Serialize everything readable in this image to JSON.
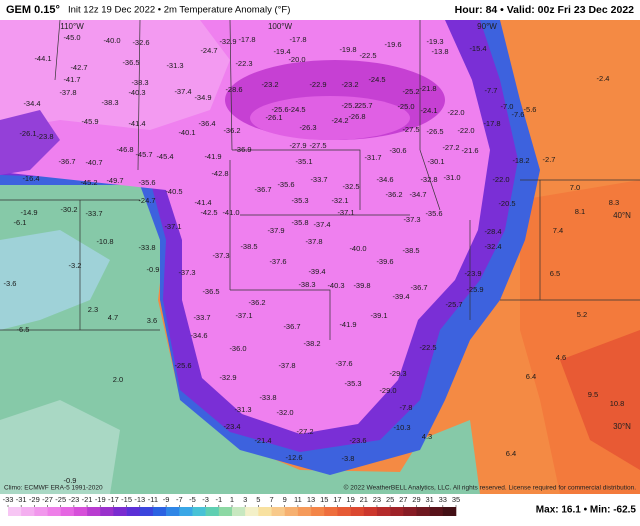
{
  "header": {
    "model": "GEM 0.15°",
    "subtitle": "Init 12z 19 Dec 2022 • 2m Temperature Anomaly (°F)",
    "valid": "Hour: 84 • Valid: 00z Fri 23 Dec 2022"
  },
  "grid_labels": [
    "110°W",
    "100°W",
    "90°W",
    "40°N",
    "30°N"
  ],
  "map_labels": [
    "-45.0",
    "-40.0",
    "-32.6",
    "-32.9",
    "-17.8",
    "-17.8",
    "-19.8",
    "-19.6",
    "-19.3",
    "-24.7",
    "-19.4",
    "-22.5",
    "-13.8",
    "-15.4",
    "-44.1",
    "-36.5",
    "-31.3",
    "-22.3",
    "-20.0",
    "-42.7",
    "-41.7",
    "-38.3",
    "-23.2",
    "-24.5",
    "-21.8",
    "-7.7",
    "-37.8",
    "-40.3",
    "-37.4",
    "-28.6",
    "-23.2",
    "-22.9",
    "-25.2",
    "-34.4",
    "-38.3",
    "-34.9",
    "-25.6",
    "-24.5",
    "-25.2",
    "-25.7",
    "-25.0",
    "-24.1",
    "-22.0",
    "-7.0",
    "-5.6",
    "-2.4",
    "-26.1",
    "-24.2",
    "-26.8",
    "-17.8",
    "-7.6",
    "-26.3",
    "-27.5",
    "-26.5",
    "-22.0",
    "-45.9",
    "-41.4",
    "-36.4",
    "-36.2",
    "-40.1",
    "-26.1",
    "-23.8",
    "-46.8",
    "-45.7",
    "-45.4",
    "-27.9",
    "-27.5",
    "-27.2",
    "-21.6",
    "-18.2",
    "-2.7",
    "-36.7",
    "-40.7",
    "-36.9",
    "-31.7",
    "-30.6",
    "-30.1",
    "-41.9",
    "-35.1",
    "-16.4",
    "-45.2",
    "-49.7",
    "-35.6",
    "-40.5",
    "-42.8",
    "-33.7",
    "-32.5",
    "-34.6",
    "-32.8",
    "-31.0",
    "-22.0",
    "7.0",
    "-36.7",
    "-35.6",
    "-36.2",
    "-34.7",
    "-14.9",
    "-30.2",
    "-33.7",
    "-24.7",
    "-41.4",
    "-35.3",
    "-32.1",
    "-20.5",
    "8.1",
    "8.3",
    "-42.5",
    "-41.0",
    "-37.1",
    "-37.1",
    "-37.3",
    "-35.6",
    "-6.1",
    "-35.8",
    "-37.4",
    "-37.9",
    "-28.4",
    "7.4",
    "-10.8",
    "-33.8",
    "-38.5",
    "-37.8",
    "-40.0",
    "-38.5",
    "-32.4",
    "-3.2",
    "-37.3",
    "-37.6",
    "-39.6",
    "-0.9",
    "-39.4",
    "-23.9",
    "6.5",
    "-37.3",
    "-38.3",
    "-40.3",
    "-39.8",
    "-36.7",
    "-25.9",
    "-3.6",
    "-36.5",
    "-36.2",
    "-39.4",
    "-25.7",
    "-37.1",
    "-33.7",
    "-39.1",
    "2.3",
    "4.7",
    "3.6",
    "-36.7",
    "-41.9",
    "-34.6",
    "5.2",
    "-6.5",
    "-38.2",
    "-36.0",
    "-22.5",
    "4.6",
    "-25.6",
    "-37.8",
    "-37.6",
    "-29.3",
    "-32.9",
    "-35.3",
    "2.0",
    "6.4",
    "-29.0",
    "-33.8",
    "-31.3",
    "-32.0",
    "-7.8",
    "9.5",
    "10.8",
    "-23.4",
    "-10.3",
    "4.3",
    "-21.4",
    "-27.2",
    "-23.6",
    "6.4",
    "-12.6",
    "-3.8",
    "-0.9"
  ],
  "colorbar": {
    "ticks": [
      -33,
      -31,
      -29,
      -27,
      -25,
      -23,
      -21,
      -19,
      -17,
      -15,
      -13,
      -11,
      -9,
      -7,
      -5,
      -3,
      -1,
      1,
      3,
      5,
      7,
      9,
      11,
      13,
      15,
      17,
      19,
      21,
      23,
      25,
      27,
      29,
      31,
      33,
      35
    ],
    "colors": [
      "#f7c6f4",
      "#f4aef0",
      "#f197ec",
      "#ee7fe8",
      "#e566e2",
      "#d64fd9",
      "#b93cd0",
      "#9a31cc",
      "#7a2bd0",
      "#5b2fd6",
      "#3b45dd",
      "#2b62e2",
      "#2f86e6",
      "#3aa7e6",
      "#48c2d6",
      "#5fcfb2",
      "#8cd8a4",
      "#c8e8c0",
      "#f3f0c8",
      "#f8e1a0",
      "#f8c98a",
      "#f6b070",
      "#f59a5a",
      "#f38548",
      "#ee6e3d",
      "#e65a35",
      "#db4830",
      "#cc372d",
      "#b52b2b",
      "#9e2228",
      "#871c25",
      "#6f1820",
      "#58131a",
      "#431015"
    ]
  },
  "footer": {
    "climo": "Climo: ECMWF ERA-5 1991-2020",
    "copyright": "© 2022 WeatherBELL Analytics, LLC. All rights reserved. License required for commercial distribution.",
    "maxmin": "Max: 16.1 • Min: -62.5"
  }
}
